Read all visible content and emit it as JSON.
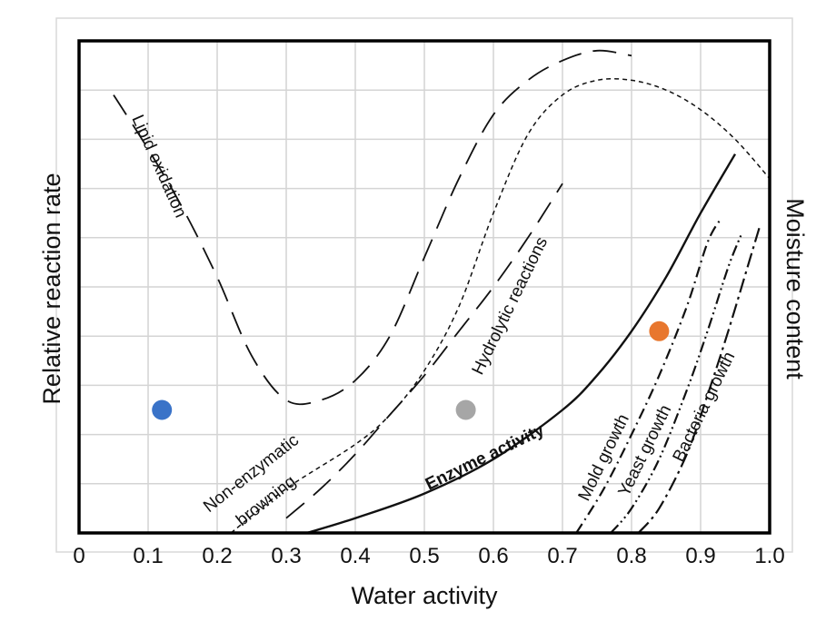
{
  "chart_data": {
    "type": "line",
    "xlabel": "Water activity",
    "ylabel": "Relative reaction rate",
    "y2label": "Moisture content",
    "xlim": [
      0,
      1.0
    ],
    "ylim": [
      0,
      10
    ],
    "x_ticks": [
      "0",
      "0.1",
      "0.2",
      "0.3",
      "0.4",
      "0.5",
      "0.6",
      "0.7",
      "0.8",
      "0.9",
      "1.0"
    ],
    "grid": true,
    "series": [
      {
        "name": "Lipid oxidation",
        "style": "long-dash",
        "x": [
          0.05,
          0.1,
          0.15,
          0.2,
          0.25,
          0.3,
          0.35,
          0.4,
          0.45,
          0.5,
          0.55,
          0.6,
          0.65,
          0.7,
          0.75,
          0.8
        ],
        "y": [
          8.9,
          7.8,
          6.6,
          5.2,
          3.6,
          2.7,
          2.7,
          3.1,
          4.0,
          5.6,
          7.2,
          8.5,
          9.2,
          9.6,
          9.8,
          9.7
        ]
      },
      {
        "name": "Non-enzymatic browning",
        "style": "long-dash",
        "x": [
          0.3,
          0.35,
          0.4,
          0.45,
          0.5,
          0.55,
          0.6,
          0.65,
          0.7
        ],
        "y": [
          0.3,
          0.9,
          1.6,
          2.4,
          3.2,
          4.1,
          5.0,
          6.0,
          7.1
        ]
      },
      {
        "name": "Hydrolytic reactions",
        "style": "short-dash",
        "x": [
          0.22,
          0.3,
          0.4,
          0.45,
          0.5,
          0.55,
          0.6,
          0.65,
          0.7,
          0.75,
          0.8,
          0.85,
          0.9,
          0.95,
          1.0
        ],
        "y": [
          0.0,
          0.9,
          1.8,
          2.4,
          3.3,
          4.6,
          6.5,
          8.1,
          8.9,
          9.2,
          9.2,
          9.0,
          8.6,
          8.0,
          7.2
        ]
      },
      {
        "name": "Enzyme activity",
        "style": "solid",
        "x": [
          0.33,
          0.4,
          0.5,
          0.6,
          0.7,
          0.75,
          0.8,
          0.85,
          0.9,
          0.95
        ],
        "y": [
          0.0,
          0.3,
          0.8,
          1.5,
          2.5,
          3.2,
          4.1,
          5.2,
          6.5,
          7.7
        ]
      },
      {
        "name": "Mold growth",
        "style": "dash-dot",
        "x": [
          0.72,
          0.76,
          0.8,
          0.84,
          0.88,
          0.91,
          0.93
        ],
        "y": [
          0.0,
          0.9,
          2.0,
          3.2,
          4.6,
          5.9,
          6.4
        ]
      },
      {
        "name": "Yeast growth",
        "style": "dash-dot-dot",
        "x": [
          0.77,
          0.8,
          0.84,
          0.88,
          0.91,
          0.94,
          0.96
        ],
        "y": [
          0.0,
          0.5,
          1.5,
          2.9,
          4.1,
          5.4,
          6.1
        ]
      },
      {
        "name": "Bacteria growth",
        "style": "dash-dot-long",
        "x": [
          0.81,
          0.84,
          0.88,
          0.91,
          0.94,
          0.97,
          0.985
        ],
        "y": [
          0.0,
          0.5,
          1.6,
          2.8,
          4.1,
          5.5,
          6.2
        ]
      }
    ],
    "points": [
      {
        "x": 0.12,
        "y": 2.5,
        "color": "#3a73c8"
      },
      {
        "x": 0.56,
        "y": 2.5,
        "color": "#a6a6a6"
      },
      {
        "x": 0.84,
        "y": 4.1,
        "color": "#e8772e"
      }
    ]
  }
}
